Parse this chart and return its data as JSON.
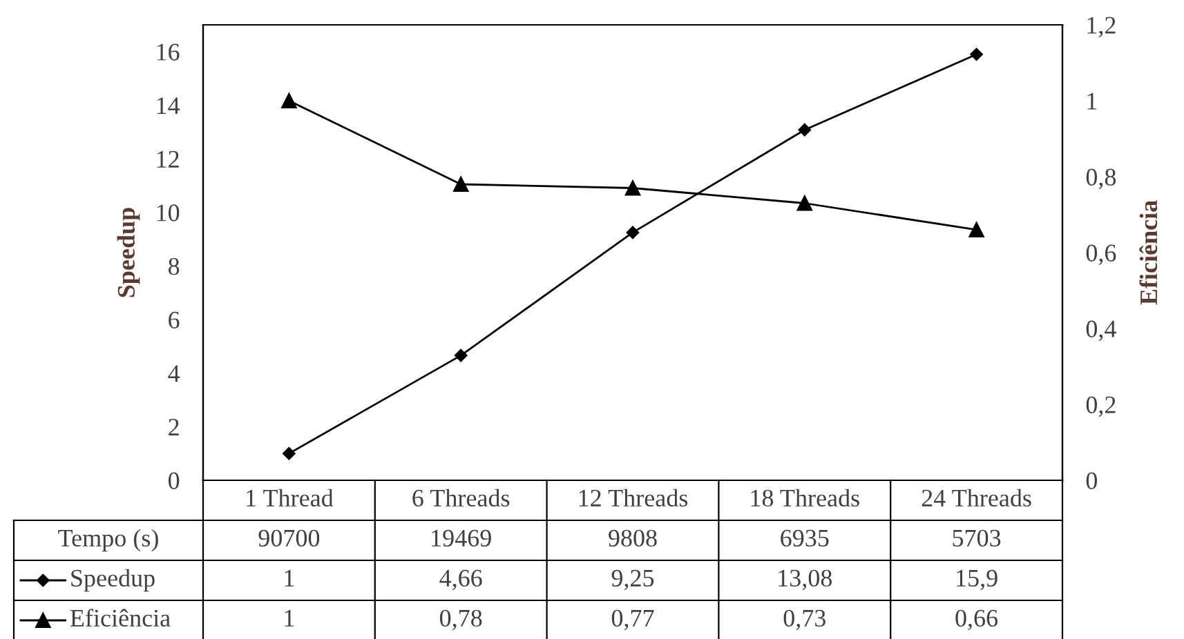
{
  "chart_data": {
    "type": "line",
    "ylabel": "Speedup",
    "y2label": "Eficiência",
    "categories": [
      "1 Thread",
      "6 Threads",
      "12 Threads",
      "18 Threads",
      "24 Threads"
    ],
    "series": [
      {
        "name": "Speedup",
        "color": "#000000",
        "marker": "diamond",
        "values": [
          1,
          4.66,
          9.25,
          13.08,
          15.9
        ],
        "value_labels": [
          "1",
          "4,66",
          "9,25",
          "13,08",
          "15,9"
        ]
      },
      {
        "name": "Eficiência",
        "color": "#000000",
        "marker": "triangle",
        "axis": "y2",
        "values": [
          1,
          0.78,
          0.77,
          0.73,
          0.66
        ],
        "value_labels": [
          "1",
          "0,78",
          "0,77",
          "0,73",
          "0,66"
        ]
      }
    ],
    "ylim": [
      0,
      17
    ],
    "yticks": [
      0,
      2,
      4,
      6,
      8,
      10,
      12,
      14,
      16
    ],
    "y2lim": [
      0,
      1.2
    ],
    "y2ticks": [
      0,
      {
        "value": 0.2,
        "label": "0,2"
      },
      {
        "value": 0.4,
        "label": "0,4"
      },
      {
        "value": 0.6,
        "label": "0,6"
      },
      {
        "value": 0.8,
        "label": "0,8"
      },
      1,
      {
        "value": 1.2,
        "label": "1,2"
      }
    ],
    "annotations": [
      "Tempo (s)",
      "90700",
      "19469",
      "9808",
      "6935",
      "5703"
    ],
    "grid": false,
    "legend": "bottom"
  }
}
